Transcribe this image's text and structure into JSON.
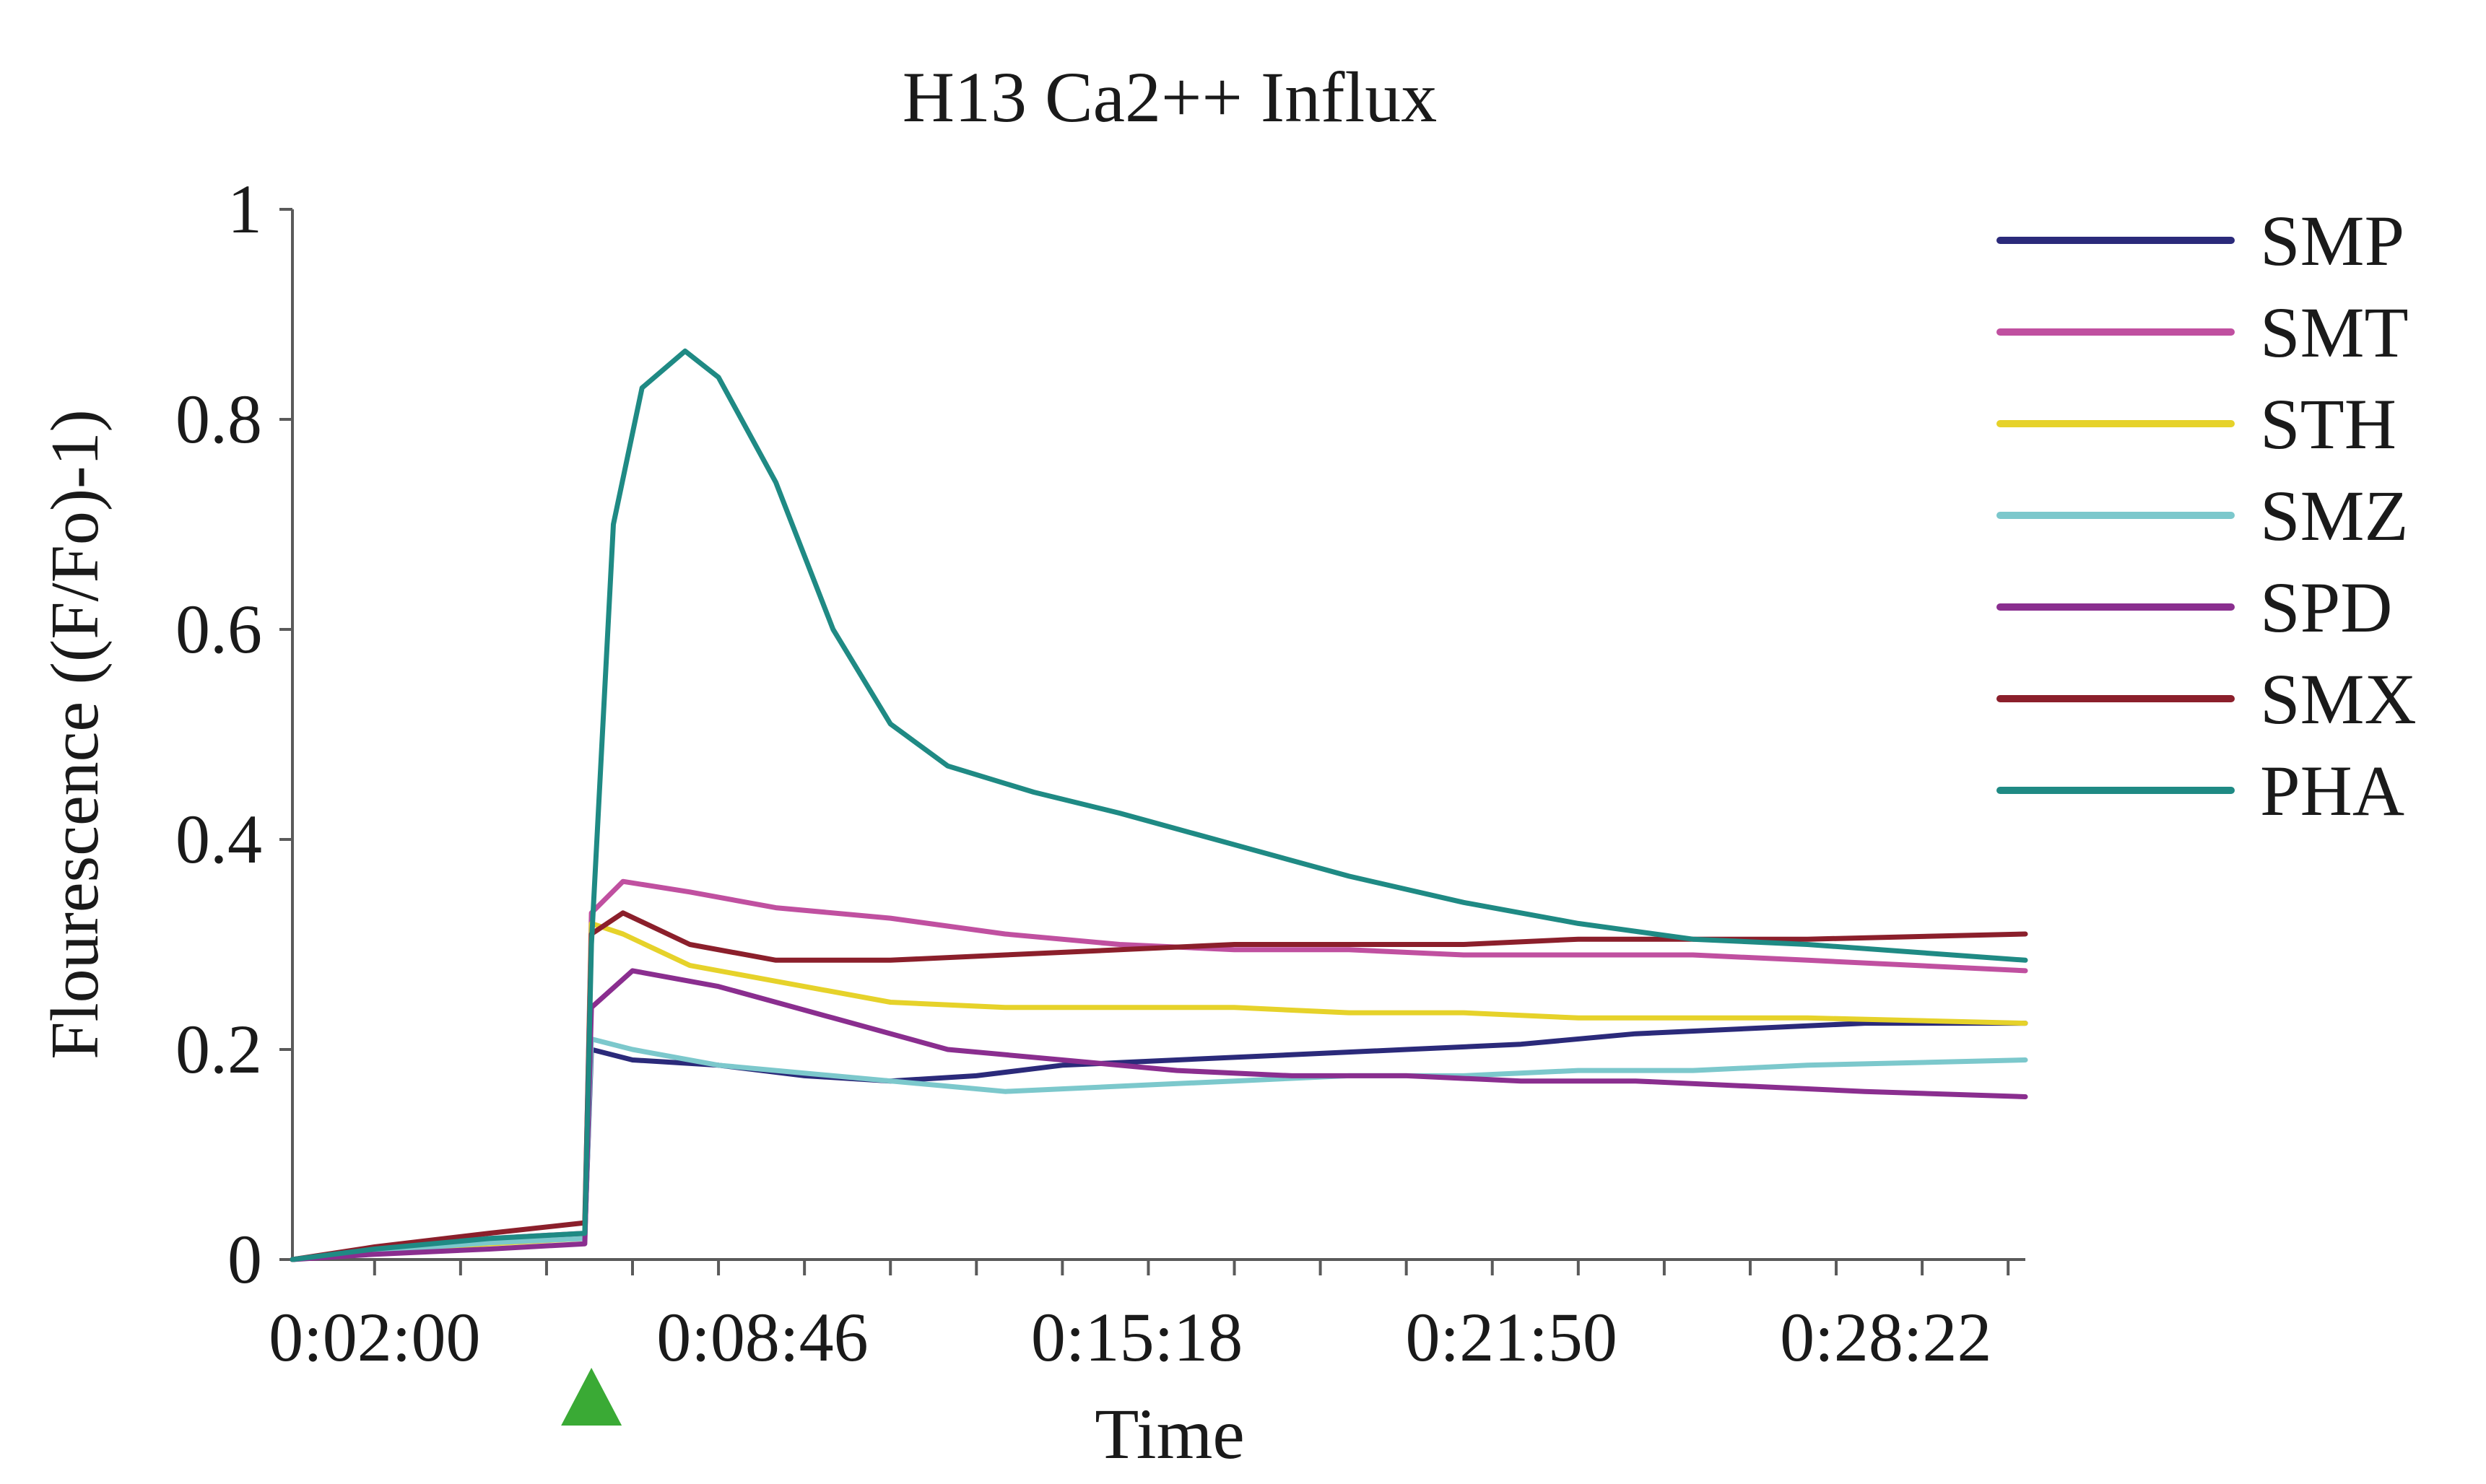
{
  "chart_data": {
    "type": "line",
    "title": "H13 Ca2++ Influx",
    "xlabel": "Time",
    "ylabel": "Flourescence ((F/Fo)-1)",
    "ylim": [
      0,
      1
    ],
    "yticks": [
      0,
      0.2,
      0.4,
      0.6,
      0.8,
      1
    ],
    "ytick_labels": [
      "0",
      "0.2",
      "0.4",
      "0.6",
      "0.8",
      "1"
    ],
    "xlim": [
      "0:00:34",
      "0:30:48"
    ],
    "xtick_labels": [
      "0:02:00",
      "0:08:46",
      "0:15:18",
      "0:21:50",
      "0:28:22"
    ],
    "xticks": [
      "0:02:00",
      "0:08:46",
      "0:15:18",
      "0:21:50",
      "0:28:22"
    ],
    "x_minor_tick_interval": "0:01:30",
    "grid": false,
    "legend_position": "right",
    "annotation": {
      "type": "triangle-marker",
      "x": "0:05:47",
      "color": "#3aaa35"
    },
    "series": [
      {
        "name": "SMP",
        "color": "#2b2a7a",
        "points": [
          [
            "0:00:34",
            0
          ],
          [
            "0:02:00",
            0.01
          ],
          [
            "0:04:00",
            0.018
          ],
          [
            "0:05:40",
            0.022
          ],
          [
            "0:05:47",
            0.2
          ],
          [
            "0:06:30",
            0.19
          ],
          [
            "0:08:00",
            0.185
          ],
          [
            "0:09:30",
            0.175
          ],
          [
            "0:11:00",
            0.17
          ],
          [
            "0:12:30",
            0.175
          ],
          [
            "0:14:00",
            0.185
          ],
          [
            "0:16:00",
            0.19
          ],
          [
            "0:18:00",
            0.195
          ],
          [
            "0:20:00",
            0.2
          ],
          [
            "0:22:00",
            0.205
          ],
          [
            "0:24:00",
            0.215
          ],
          [
            "0:26:00",
            0.22
          ],
          [
            "0:28:00",
            0.225
          ],
          [
            "0:30:48",
            0.225
          ]
        ]
      },
      {
        "name": "SMT",
        "color": "#c050a0",
        "points": [
          [
            "0:00:34",
            0
          ],
          [
            "0:02:00",
            0.01
          ],
          [
            "0:04:00",
            0.02
          ],
          [
            "0:05:40",
            0.025
          ],
          [
            "0:05:47",
            0.33
          ],
          [
            "0:06:20",
            0.36
          ],
          [
            "0:07:30",
            0.35
          ],
          [
            "0:09:00",
            0.335
          ],
          [
            "0:11:00",
            0.325
          ],
          [
            "0:13:00",
            0.31
          ],
          [
            "0:15:00",
            0.3
          ],
          [
            "0:17:00",
            0.295
          ],
          [
            "0:19:00",
            0.295
          ],
          [
            "0:21:00",
            0.29
          ],
          [
            "0:23:00",
            0.29
          ],
          [
            "0:25:00",
            0.29
          ],
          [
            "0:27:00",
            0.285
          ],
          [
            "0:30:48",
            0.275
          ]
        ]
      },
      {
        "name": "STH",
        "color": "#e6d22a",
        "points": [
          [
            "0:00:34",
            0
          ],
          [
            "0:02:00",
            0.008
          ],
          [
            "0:04:00",
            0.015
          ],
          [
            "0:05:40",
            0.02
          ],
          [
            "0:05:47",
            0.32
          ],
          [
            "0:06:20",
            0.31
          ],
          [
            "0:07:30",
            0.28
          ],
          [
            "0:09:00",
            0.265
          ],
          [
            "0:11:00",
            0.245
          ],
          [
            "0:13:00",
            0.24
          ],
          [
            "0:15:00",
            0.24
          ],
          [
            "0:17:00",
            0.24
          ],
          [
            "0:19:00",
            0.235
          ],
          [
            "0:21:00",
            0.235
          ],
          [
            "0:23:00",
            0.23
          ],
          [
            "0:25:00",
            0.23
          ],
          [
            "0:27:00",
            0.23
          ],
          [
            "0:30:48",
            0.225
          ]
        ]
      },
      {
        "name": "SMZ",
        "color": "#7cc8cc",
        "points": [
          [
            "0:00:34",
            0
          ],
          [
            "0:02:00",
            0.008
          ],
          [
            "0:04:00",
            0.016
          ],
          [
            "0:05:40",
            0.02
          ],
          [
            "0:05:47",
            0.21
          ],
          [
            "0:06:30",
            0.2
          ],
          [
            "0:08:00",
            0.185
          ],
          [
            "0:10:00",
            0.175
          ],
          [
            "0:12:00",
            0.165
          ],
          [
            "0:13:00",
            0.16
          ],
          [
            "0:15:00",
            0.165
          ],
          [
            "0:17:00",
            0.17
          ],
          [
            "0:19:00",
            0.175
          ],
          [
            "0:21:00",
            0.175
          ],
          [
            "0:23:00",
            0.18
          ],
          [
            "0:25:00",
            0.18
          ],
          [
            "0:27:00",
            0.185
          ],
          [
            "0:30:48",
            0.19
          ]
        ]
      },
      {
        "name": "SPD",
        "color": "#8a2e8f",
        "points": [
          [
            "0:00:34",
            0
          ],
          [
            "0:02:00",
            0.005
          ],
          [
            "0:04:00",
            0.01
          ],
          [
            "0:05:40",
            0.015
          ],
          [
            "0:05:47",
            0.24
          ],
          [
            "0:06:30",
            0.275
          ],
          [
            "0:08:00",
            0.26
          ],
          [
            "0:10:00",
            0.23
          ],
          [
            "0:12:00",
            0.2
          ],
          [
            "0:14:00",
            0.19
          ],
          [
            "0:16:00",
            0.18
          ],
          [
            "0:18:00",
            0.175
          ],
          [
            "0:20:00",
            0.175
          ],
          [
            "0:22:00",
            0.17
          ],
          [
            "0:24:00",
            0.17
          ],
          [
            "0:26:00",
            0.165
          ],
          [
            "0:28:00",
            0.16
          ],
          [
            "0:30:48",
            0.155
          ]
        ]
      },
      {
        "name": "SMX",
        "color": "#8b1f2b",
        "points": [
          [
            "0:00:34",
            0
          ],
          [
            "0:02:00",
            0.012
          ],
          [
            "0:04:00",
            0.025
          ],
          [
            "0:05:40",
            0.035
          ],
          [
            "0:05:47",
            0.31
          ],
          [
            "0:06:20",
            0.33
          ],
          [
            "0:07:30",
            0.3
          ],
          [
            "0:09:00",
            0.285
          ],
          [
            "0:11:00",
            0.285
          ],
          [
            "0:13:00",
            0.29
          ],
          [
            "0:15:00",
            0.295
          ],
          [
            "0:17:00",
            0.3
          ],
          [
            "0:19:00",
            0.3
          ],
          [
            "0:21:00",
            0.3
          ],
          [
            "0:23:00",
            0.305
          ],
          [
            "0:25:00",
            0.305
          ],
          [
            "0:27:00",
            0.305
          ],
          [
            "0:30:48",
            0.31
          ]
        ]
      },
      {
        "name": "PHA",
        "color": "#1f8a84",
        "points": [
          [
            "0:00:34",
            0
          ],
          [
            "0:02:00",
            0.01
          ],
          [
            "0:04:00",
            0.02
          ],
          [
            "0:05:40",
            0.025
          ],
          [
            "0:05:47",
            0.3
          ],
          [
            "0:06:10",
            0.7
          ],
          [
            "0:06:40",
            0.83
          ],
          [
            "0:07:25",
            0.865
          ],
          [
            "0:08:00",
            0.84
          ],
          [
            "0:09:00",
            0.74
          ],
          [
            "0:10:00",
            0.6
          ],
          [
            "0:11:00",
            0.51
          ],
          [
            "0:12:00",
            0.47
          ],
          [
            "0:13:30",
            0.445
          ],
          [
            "0:15:00",
            0.425
          ],
          [
            "0:17:00",
            0.395
          ],
          [
            "0:19:00",
            0.365
          ],
          [
            "0:21:00",
            0.34
          ],
          [
            "0:23:00",
            0.32
          ],
          [
            "0:25:00",
            0.305
          ],
          [
            "0:27:00",
            0.3
          ],
          [
            "0:30:48",
            0.285
          ]
        ]
      }
    ]
  }
}
